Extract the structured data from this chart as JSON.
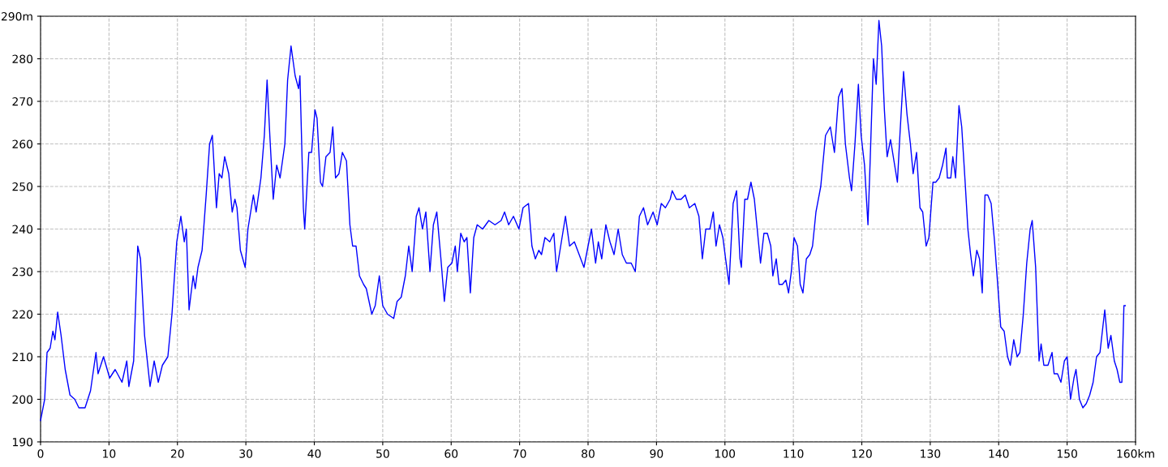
{
  "chart_data": {
    "type": "line",
    "xlim": [
      0,
      160
    ],
    "ylim": [
      190,
      290
    ],
    "xticks": [
      0,
      10,
      20,
      30,
      40,
      50,
      60,
      70,
      80,
      90,
      100,
      110,
      120,
      130,
      140,
      150,
      {
        "value": 160,
        "label": "160km"
      }
    ],
    "yticks": [
      190,
      200,
      210,
      220,
      230,
      240,
      250,
      260,
      270,
      280,
      {
        "value": 290,
        "label": "290m"
      }
    ],
    "grid": true,
    "marker": "none",
    "line_style": "solid",
    "series": [
      {
        "color": "#0000ff",
        "x": [
          0,
          0.6,
          0.95,
          1.4,
          1.8,
          2.1,
          2.5,
          3.0,
          3.6,
          4.3,
          5.0,
          5.6,
          6.5,
          7.3,
          8.1,
          8.4,
          9.2,
          10.1,
          10.9,
          11.9,
          12.6,
          12.9,
          13.6,
          14.2,
          14.6,
          15.2,
          16.0,
          16.6,
          17.2,
          17.8,
          18.6,
          19.2,
          19.9,
          20.5,
          21.0,
          21.3,
          21.7,
          22.3,
          22.6,
          23.0,
          23.6,
          24.2,
          24.7,
          25.1,
          25.7,
          26.1,
          26.5,
          26.9,
          27.5,
          28.0,
          28.4,
          28.7,
          29.2,
          29.9,
          30.3,
          31.1,
          31.5,
          32.2,
          32.7,
          33.1,
          33.5,
          34.0,
          34.5,
          35.0,
          35.7,
          36.1,
          36.6,
          37.2,
          37.7,
          37.9,
          38.4,
          38.6,
          39.2,
          39.6,
          40.1,
          40.4,
          40.9,
          41.2,
          41.7,
          42.3,
          42.7,
          43.1,
          43.6,
          44.1,
          44.7,
          45.2,
          45.6,
          46.1,
          46.6,
          47.2,
          47.6,
          48.4,
          48.9,
          49.5,
          50.0,
          50.7,
          51.6,
          52.1,
          52.7,
          53.3,
          53.8,
          54.3,
          54.9,
          55.3,
          55.8,
          56.3,
          56.9,
          57.4,
          57.9,
          58.5,
          59.0,
          59.5,
          60.1,
          60.6,
          60.9,
          61.4,
          61.9,
          62.3,
          62.8,
          63.3,
          63.8,
          64.6,
          65.5,
          66.4,
          67.3,
          67.8,
          68.4,
          69.1,
          69.9,
          70.5,
          71.3,
          71.8,
          72.3,
          72.8,
          73.2,
          73.7,
          74.4,
          75.0,
          75.4,
          75.9,
          76.7,
          77.3,
          78.0,
          78.7,
          79.4,
          80.0,
          80.5,
          81.1,
          81.5,
          82.0,
          82.6,
          83.2,
          83.8,
          84.4,
          85.0,
          85.6,
          86.3,
          86.9,
          87.5,
          88.1,
          88.7,
          89.5,
          90.1,
          90.7,
          91.3,
          92.0,
          92.3,
          92.9,
          93.6,
          94.2,
          94.8,
          95.6,
          96.2,
          96.7,
          97.2,
          97.8,
          98.3,
          98.7,
          99.2,
          99.7,
          100.1,
          100.6,
          101.2,
          101.7,
          102.2,
          102.4,
          102.9,
          103.3,
          103.8,
          104.3,
          104.9,
          105.2,
          105.7,
          106.2,
          106.7,
          107.0,
          107.5,
          107.9,
          108.4,
          108.9,
          109.3,
          109.7,
          110.1,
          110.6,
          111.0,
          111.4,
          111.9,
          112.4,
          112.8,
          113.3,
          114.0,
          114.7,
          115.4,
          116.0,
          116.6,
          117.1,
          117.6,
          118.2,
          118.5,
          119.0,
          119.5,
          119.9,
          120.4,
          120.9,
          121.2,
          121.7,
          122.1,
          122.5,
          122.9,
          123.3,
          123.7,
          124.2,
          124.7,
          125.2,
          125.6,
          126.1,
          126.6,
          127.1,
          127.5,
          128.0,
          128.5,
          128.9,
          129.4,
          129.8,
          130.4,
          130.8,
          131.3,
          131.8,
          132.3,
          132.5,
          133.0,
          133.3,
          133.7,
          134.2,
          134.6,
          135.1,
          135.5,
          135.9,
          136.3,
          136.8,
          137.2,
          137.6,
          138.0,
          138.4,
          138.9,
          139.4,
          139.9,
          140.3,
          140.8,
          141.3,
          141.7,
          142.2,
          142.7,
          143.1,
          143.6,
          144.1,
          144.6,
          144.9,
          145.4,
          145.9,
          146.2,
          146.6,
          147.2,
          147.8,
          148.1,
          148.6,
          149.1,
          149.6,
          150.0,
          150.5,
          151.0,
          151.3,
          151.8,
          152.3,
          152.8,
          153.3,
          153.8,
          154.3,
          154.8,
          155.5,
          156.0,
          156.4,
          156.9,
          157.3,
          157.7,
          158.0,
          158.3,
          158.5
        ],
        "values": [
          195,
          200,
          211,
          212,
          216,
          214,
          220.5,
          215,
          207,
          201,
          200,
          198,
          198,
          202,
          211,
          206,
          210,
          205,
          207,
          204,
          209,
          203,
          209,
          236,
          233,
          215,
          203,
          209,
          204,
          208,
          210,
          220,
          237,
          243,
          237,
          240,
          221,
          229,
          226,
          231,
          235,
          248,
          260,
          262,
          245,
          253,
          252,
          257,
          253,
          244,
          247,
          245,
          235,
          231,
          240,
          248,
          244,
          252,
          262,
          275,
          262,
          247,
          255,
          252,
          260,
          275,
          283,
          276,
          273,
          276,
          245,
          240,
          258,
          258,
          268,
          266,
          251,
          250,
          257,
          258,
          264,
          252,
          253,
          258,
          256,
          241,
          236,
          236,
          229,
          227,
          226,
          220,
          222,
          229,
          222,
          220,
          219,
          223,
          224,
          229,
          236,
          230,
          243,
          245,
          240,
          244,
          230,
          241,
          244,
          233,
          223,
          231,
          232,
          236,
          230,
          239,
          237,
          238,
          225,
          238,
          241,
          240,
          242,
          241,
          242,
          244,
          241,
          243,
          240,
          245,
          246,
          236,
          233,
          235,
          234,
          238,
          237,
          239,
          230,
          235,
          243,
          236,
          237,
          234,
          231,
          236,
          240,
          232,
          237,
          233,
          241,
          237,
          234,
          240,
          234,
          232,
          232,
          230,
          243,
          245,
          241,
          244,
          241,
          246,
          245,
          247,
          249,
          247,
          247,
          248,
          245,
          246,
          243,
          233,
          240,
          240,
          244,
          236,
          241,
          238,
          233,
          227,
          246,
          249,
          233,
          231,
          247,
          247,
          251,
          247,
          237,
          232,
          239,
          239,
          236,
          229,
          233,
          227,
          227,
          228,
          225,
          230,
          238,
          236,
          227,
          225,
          233,
          234,
          236,
          244,
          250,
          262,
          264,
          258,
          271,
          273,
          260,
          252,
          249,
          260,
          274,
          262,
          255,
          241,
          255,
          280,
          274,
          289,
          283,
          268,
          257,
          261,
          256,
          251,
          263,
          277,
          267,
          260,
          253,
          258,
          245,
          244,
          236,
          238,
          251,
          251,
          252,
          255,
          259,
          252,
          252,
          257,
          252,
          269,
          264,
          251,
          240,
          234,
          229,
          235,
          233,
          225,
          248,
          248,
          246,
          237,
          226,
          217,
          216,
          210,
          208,
          214,
          210,
          211,
          220,
          232,
          240,
          242,
          231,
          209,
          213,
          208,
          208,
          211,
          206,
          206,
          204,
          209,
          210,
          200,
          205,
          207,
          200,
          198,
          199,
          201,
          204,
          210,
          211,
          221,
          212,
          215,
          209,
          207,
          204,
          204,
          222,
          222
        ]
      }
    ]
  }
}
